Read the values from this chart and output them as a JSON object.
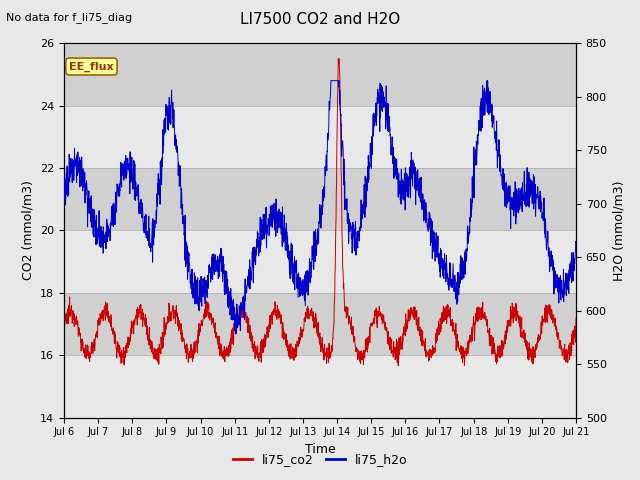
{
  "title": "LI7500 CO2 and H2O",
  "subtitle": "No data for f_li75_diag",
  "xlabel": "Time",
  "ylabel_left": "CO2 (mmol/m3)",
  "ylabel_right": "H2O (mmol/m3)",
  "ylim_left": [
    14,
    26
  ],
  "ylim_right": [
    500,
    850
  ],
  "yticks_left": [
    14,
    16,
    18,
    20,
    22,
    24,
    26
  ],
  "yticks_right": [
    500,
    550,
    600,
    650,
    700,
    750,
    800,
    850
  ],
  "xtick_labels": [
    "Jul 6",
    "Jul 7",
    "Jul 8",
    "Jul 9",
    "Jul 10",
    "Jul 11",
    "Jul 12",
    "Jul 13",
    "Jul 14",
    "Jul 15",
    "Jul 16",
    "Jul 17",
    "Jul 18",
    "Jul 19",
    "Jul 20",
    "Jul 21"
  ],
  "annotation_box": "EE_flux",
  "legend_labels": [
    "li75_co2",
    "li75_h2o"
  ],
  "legend_colors": [
    "#cc0000",
    "#0000cc"
  ],
  "bg_color": "#e8e8e8",
  "plot_bg_color": "#e0e0e0",
  "co2_color": "#cc0000",
  "h2o_color": "#0000cc",
  "n_points": 2000
}
